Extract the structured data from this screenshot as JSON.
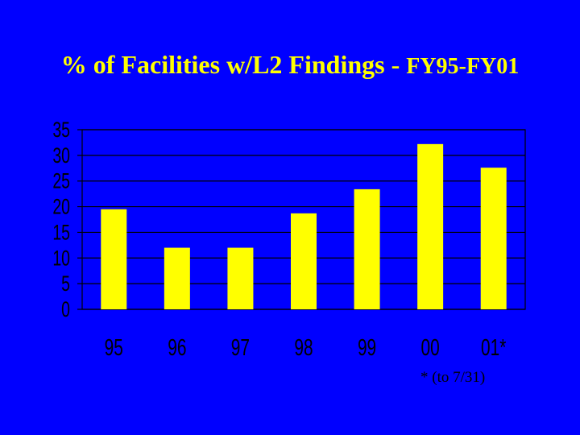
{
  "title": {
    "main": "% of Facilities w/L2 Findings -",
    "sub": "FY95-FY01"
  },
  "footnote": "* (to 7/31)",
  "colors": {
    "background": "#0000FF",
    "title": "#FFFF00",
    "bar": "#FFFF00",
    "gridline": "#000000",
    "text": "#000000"
  },
  "chart_data": {
    "type": "bar",
    "categories": [
      "95",
      "96",
      "97",
      "98",
      "99",
      "00",
      "01*"
    ],
    "values": [
      19.5,
      12,
      12,
      18.7,
      23.4,
      32.2,
      27.6
    ],
    "yticks": [
      "0",
      "5",
      "10",
      "15",
      "20",
      "25",
      "30",
      "35"
    ],
    "ylim": [
      0,
      35
    ],
    "grid": true,
    "legend": "none"
  }
}
